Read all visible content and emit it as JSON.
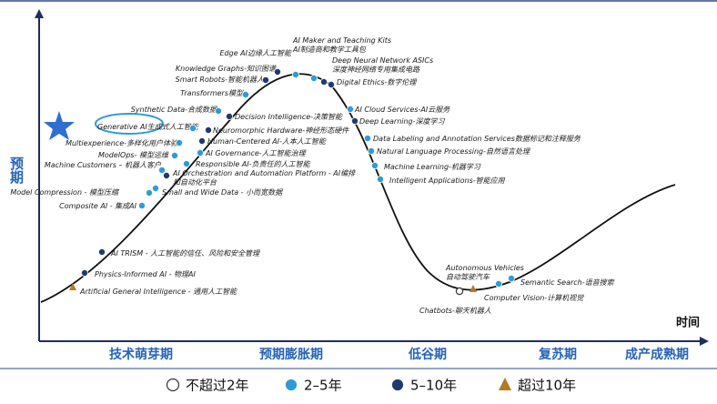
{
  "axes": {
    "y_label": "预期",
    "x_label": "时间"
  },
  "phases": [
    "技术萌芽期",
    "预期膨胀期",
    "低谷期",
    "复苏期",
    "成产成熟期"
  ],
  "legend": [
    {
      "label": "不超过2年",
      "items": [
        [
          "Chatbots-聊天机器人"
        ]
      ]
    },
    {
      "label": "2–5年",
      "items": [
        [
          "Composite AI - 集成AI"
        ],
        [
          "Model Compression - 模型压缩"
        ],
        [
          "Small and Wide Data - 小而宽数据"
        ],
        [
          "Machine Customers – 机器人客户"
        ],
        [
          "Responsible AI-负责任的人工智能"
        ],
        [
          "ModelOps- 模型运维"
        ],
        [
          "AI Governance-人工智能治理"
        ],
        [
          "Multiexperience-多样化用户体验"
        ],
        [
          "Generative AI生成式人工智能"
        ],
        [
          "Synthetic Data-合成数据"
        ],
        [
          "Transformers模型"
        ],
        [
          "Edge AI边缘人工智能"
        ],
        [
          "AI Maker and Teaching Kits",
          "AI制造商和教学工具包"
        ],
        [
          "AI Cloud Services-AI云服务"
        ],
        [
          "Data Labeling and Annotation Services数据标记和注释服务"
        ],
        [
          "Natural Language Processing-自然语言处理"
        ],
        [
          "Machine Learning-机器学习"
        ],
        [
          "Intelligent Applications-智能应用"
        ],
        [
          "Computer Vision-计算机视觉"
        ],
        [
          "Semantic Search-语音搜索"
        ]
      ]
    },
    {
      "label": "5–10年",
      "items": [
        [
          "Physics-Informed AI - 物理AI"
        ],
        [
          "AI TRISM - 人工智能的信任、风险和安全管理"
        ],
        [
          "AI Orchestration and Automation Platform - AI编排",
          "和自动化平台"
        ],
        [
          "Human-Centered AI-人本人工智能"
        ],
        [
          "Neuromorphic Hardware-神经形态硬件"
        ],
        [
          "Decision Intelligence-决策智能"
        ],
        [
          "Smart Robots-智能机器人"
        ],
        [
          "Knowledge Graphs-知识图谱"
        ],
        [
          "Deep Neural Network ASICs",
          "深度神经网络专用集成电路"
        ],
        [
          "Digital Ethics-数字伦理"
        ],
        [
          "Deep Learning-深度学习"
        ]
      ]
    },
    {
      "label": "超过10年",
      "items": [
        [
          "Artificial General Intelligence - 通用人工智能"
        ],
        [
          "Autonomous Vehicles",
          "自动驾驶汽车"
        ]
      ]
    }
  ]
}
